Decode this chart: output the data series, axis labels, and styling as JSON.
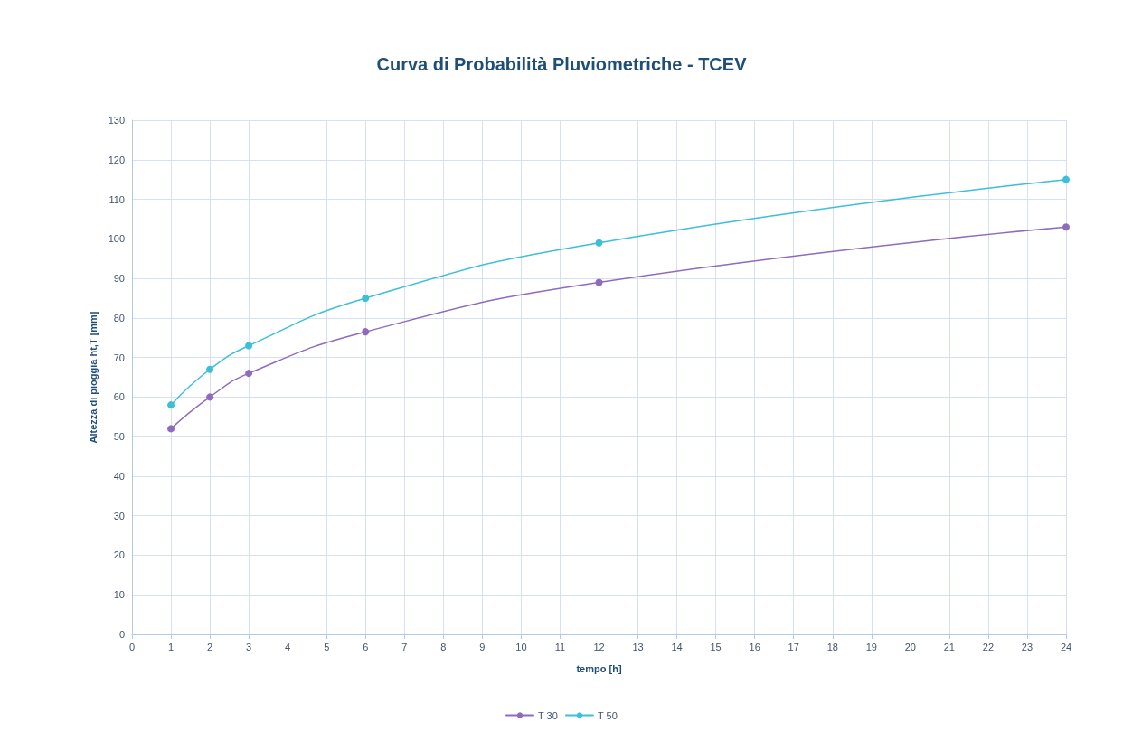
{
  "chart_data": {
    "type": "line",
    "title": "Curva di Probabilità Pluviometriche - TCEV",
    "xlabel": "tempo [h]",
    "ylabel": "Altezza di pioggia ht,T [mm]",
    "x": [
      1,
      2,
      3,
      6,
      12,
      24
    ],
    "series": [
      {
        "name": "T 30",
        "color": "#8e6bbf",
        "values": [
          52,
          60,
          66,
          76.5,
          89,
          103
        ]
      },
      {
        "name": "T 50",
        "color": "#3cbfd8",
        "values": [
          58,
          67,
          73,
          85,
          99,
          115
        ]
      }
    ],
    "xlim": [
      0,
      24
    ],
    "xticks": [
      0,
      1,
      2,
      3,
      4,
      5,
      6,
      7,
      8,
      9,
      10,
      11,
      12,
      13,
      14,
      15,
      16,
      17,
      18,
      19,
      20,
      21,
      22,
      23,
      24
    ],
    "ylim": [
      0,
      130
    ],
    "yticks": [
      0,
      10,
      20,
      30,
      40,
      50,
      60,
      70,
      80,
      90,
      100,
      110,
      120,
      130
    ],
    "grid": true,
    "legend": "bottom",
    "marker": "circle",
    "line_style": "solid"
  }
}
